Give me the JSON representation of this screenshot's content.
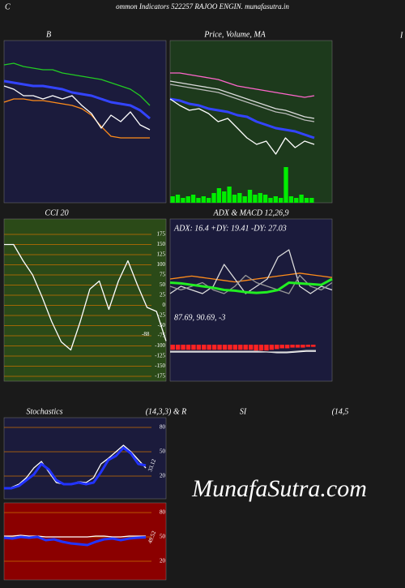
{
  "header": "C",
  "title": "ommon  Indicators 522257 RAJOO ENGIN. munafasutra.in",
  "edge_label": "I",
  "watermark": "MunafaSutra.com",
  "chart_data": [
    {
      "type": "line",
      "title": "B",
      "ylim": [
        0,
        100
      ],
      "series": [
        {
          "color": "#22cc22",
          "values": [
            85,
            86,
            84,
            83,
            82,
            82,
            80,
            79,
            78,
            77,
            76,
            74,
            72,
            70,
            66,
            60
          ]
        },
        {
          "color": "#3344ff",
          "values": [
            75,
            74,
            73,
            72,
            72,
            71,
            70,
            68,
            67,
            66,
            64,
            62,
            61,
            60,
            57,
            52
          ]
        },
        {
          "color": "#ff8c1a",
          "values": [
            62,
            64,
            64,
            63,
            63,
            62,
            61,
            60,
            58,
            54,
            47,
            41,
            40,
            40,
            40,
            40
          ]
        },
        {
          "color": "#ffffff",
          "values": [
            72,
            70,
            66,
            66,
            64,
            66,
            64,
            66,
            60,
            55,
            46,
            54,
            50,
            56,
            48,
            45
          ]
        }
      ]
    },
    {
      "type": "line",
      "title": "Price,  Volume,  MA",
      "ylim": [
        0,
        100
      ],
      "bars": {
        "color": "#00ee00",
        "values": [
          4,
          5,
          3,
          4,
          5,
          3,
          4,
          3,
          6,
          9,
          7,
          10,
          5,
          6,
          4,
          8,
          5,
          6,
          5,
          3,
          4,
          3,
          22,
          4,
          3,
          5,
          3,
          3
        ]
      },
      "series": [
        {
          "color": "#ff66cc",
          "values": [
            80,
            80,
            79,
            78,
            77,
            76,
            74,
            72,
            71,
            70,
            69,
            68,
            67,
            66,
            65,
            66
          ]
        },
        {
          "color": "#dddddd",
          "values": [
            75,
            74,
            73,
            72,
            71,
            70,
            68,
            66,
            64,
            62,
            60,
            58,
            57,
            55,
            53,
            52
          ]
        },
        {
          "color": "#bbbbbb",
          "values": [
            73,
            72,
            71,
            70,
            69,
            68,
            66,
            64,
            62,
            60,
            58,
            56,
            55,
            53,
            51,
            50
          ]
        },
        {
          "color": "#3344ff",
          "values": [
            64,
            63,
            61,
            60,
            58,
            57,
            56,
            54,
            53,
            50,
            48,
            46,
            45,
            44,
            42,
            40
          ]
        },
        {
          "color": "#ffffff",
          "values": [
            64,
            60,
            57,
            58,
            55,
            50,
            52,
            46,
            40,
            36,
            38,
            30,
            40,
            34,
            38,
            36
          ]
        }
      ]
    },
    {
      "type": "line",
      "title": "CCI 20",
      "ylim": [
        -187,
        213
      ],
      "yticks": [
        175,
        150,
        125,
        100,
        75,
        50,
        25,
        0,
        -25,
        -50,
        -75,
        -100,
        -125,
        -150,
        -175
      ],
      "series": [
        {
          "color": "#ffffff",
          "values": [
            150,
            150,
            110,
            75,
            20,
            -40,
            -90,
            -110,
            -40,
            40,
            60,
            -10,
            60,
            110,
            50,
            -5,
            -15,
            -88
          ]
        }
      ]
    },
    {
      "type": "line",
      "title": "ADX  & MACD 12,26,9",
      "annotation": "ADX: 16.4  +DY: 19.41 -DY: 27.03",
      "ylim": [
        0,
        100
      ],
      "series": [
        {
          "color": "#ff8c1a",
          "values": [
            40,
            42,
            44,
            42,
            40,
            38,
            36,
            38,
            40,
            42,
            44,
            46,
            48,
            46,
            44,
            42
          ]
        },
        {
          "color": "#dddddd",
          "values": [
            20,
            30,
            25,
            20,
            30,
            60,
            40,
            20,
            30,
            40,
            70,
            80,
            30,
            20,
            30,
            25
          ]
        },
        {
          "color": "#999999",
          "values": [
            30,
            25,
            30,
            35,
            25,
            20,
            30,
            45,
            35,
            30,
            25,
            20,
            45,
            30,
            25,
            35
          ]
        },
        {
          "color": "#22ee22",
          "values": [
            35,
            34,
            32,
            30,
            28,
            25,
            24,
            22,
            21,
            22,
            25,
            35,
            34,
            33,
            32,
            40
          ]
        }
      ]
    },
    {
      "type": "line",
      "annotation": "87.69,  90.69,  -3",
      "ylim": [
        -50,
        50
      ],
      "bars": {
        "color": "#ff2222",
        "values": [
          -7,
          -7,
          -7,
          -7,
          -7,
          -7,
          -7,
          -7,
          -7,
          -7,
          -7,
          -7,
          -7,
          -7,
          -7,
          -7,
          -8,
          -8,
          -8,
          -7,
          -6,
          -5,
          -5,
          -4,
          -4,
          -4,
          -3,
          -3
        ]
      },
      "series": [
        {
          "color": "#ffffff",
          "values": [
            -10,
            -10,
            -10,
            -10,
            -10,
            -10,
            -10,
            -10,
            -10,
            -10,
            -10,
            -11,
            -11,
            -10,
            -9,
            -9
          ]
        },
        {
          "color": "#cccccc",
          "values": [
            -9,
            -9,
            -9,
            -9,
            -9,
            -9,
            -9,
            -9,
            -9,
            -9,
            -10,
            -10,
            -10,
            -9,
            -8,
            -8
          ]
        }
      ]
    },
    {
      "type": "line",
      "title": "Stochastics",
      "subtitle": "(14,3,3) & R",
      "ylim": [
        -8,
        92
      ],
      "yticks": [
        80,
        50,
        20
      ],
      "series": [
        {
          "color": "#ffffff",
          "values": [
            5,
            6,
            10,
            18,
            30,
            38,
            25,
            12,
            10,
            10,
            13,
            12,
            18,
            35,
            42,
            50,
            58,
            50,
            40,
            30
          ]
        },
        {
          "color": "#2233ff",
          "values": [
            5,
            5,
            8,
            15,
            22,
            35,
            28,
            15,
            10,
            10,
            12,
            10,
            12,
            25,
            40,
            45,
            55,
            48,
            35,
            33.12
          ]
        }
      ]
    },
    {
      "type": "line",
      "title": "SI",
      "subtitle": "(14,5",
      "ylim": [
        -3,
        92
      ],
      "yticks": [
        80,
        50,
        20
      ],
      "series": [
        {
          "color": "#ffffff",
          "values": [
            51,
            51,
            52,
            51,
            51,
            50,
            50,
            50,
            50,
            50,
            50,
            51,
            51,
            50,
            50,
            51,
            51,
            51
          ]
        },
        {
          "color": "#2233ff",
          "values": [
            49,
            48,
            50,
            49,
            50,
            46,
            47,
            44,
            42,
            41,
            40,
            44,
            47,
            48,
            46,
            48,
            49,
            49.52
          ]
        }
      ]
    }
  ]
}
